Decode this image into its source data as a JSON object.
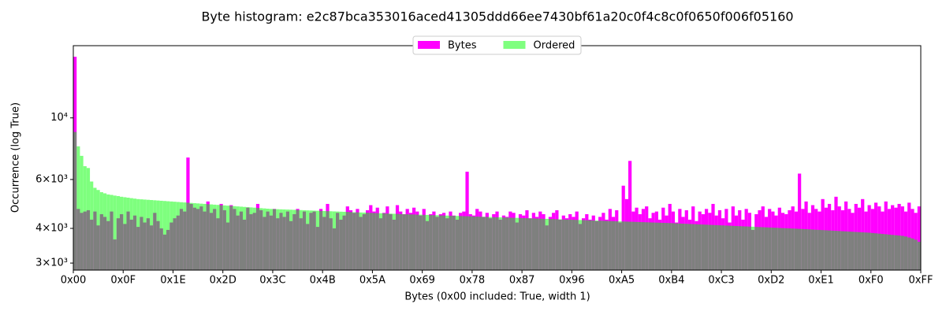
{
  "chart_data": {
    "type": "histogram",
    "title": "Byte histogram: e2c87bca353016aced41305ddd66ee7430bf61a20c0f4c8c0f0650f006f05160",
    "xlabel": "Bytes (0x00 included: True, width 1)",
    "ylabel": "Occurrence (log True)",
    "ylog": true,
    "legend": "upper center",
    "bins": [
      0,
      1,
      2,
      3,
      4,
      5,
      6,
      7,
      8,
      9,
      10,
      11,
      12,
      13,
      14,
      15,
      16,
      17,
      18,
      19,
      20,
      21,
      22,
      23,
      24,
      25,
      26,
      27,
      28,
      29,
      30,
      31,
      32,
      33,
      34,
      35,
      36,
      37,
      38,
      39,
      40,
      41,
      42,
      43,
      44,
      45,
      46,
      47,
      48,
      49,
      50,
      51,
      52,
      53,
      54,
      55,
      56,
      57,
      58,
      59,
      60,
      61,
      62,
      63,
      64,
      65,
      66,
      67,
      68,
      69,
      70,
      71,
      72,
      73,
      74,
      75,
      76,
      77,
      78,
      79,
      80,
      81,
      82,
      83,
      84,
      85,
      86,
      87,
      88,
      89,
      90,
      91,
      92,
      93,
      94,
      95,
      96,
      97,
      98,
      99,
      100,
      101,
      102,
      103,
      104,
      105,
      106,
      107,
      108,
      109,
      110,
      111,
      112,
      113,
      114,
      115,
      116,
      117,
      118,
      119,
      120,
      121,
      122,
      123,
      124,
      125,
      126,
      127,
      128,
      129,
      130,
      131,
      132,
      133,
      134,
      135,
      136,
      137,
      138,
      139,
      140,
      141,
      142,
      143,
      144,
      145,
      146,
      147,
      148,
      149,
      150,
      151,
      152,
      153,
      154,
      155,
      156,
      157,
      158,
      159,
      160,
      161,
      162,
      163,
      164,
      165,
      166,
      167,
      168,
      169,
      170,
      171,
      172,
      173,
      174,
      175,
      176,
      177,
      178,
      179,
      180,
      181,
      182,
      183,
      184,
      185,
      186,
      187,
      188,
      189,
      190,
      191,
      192,
      193,
      194,
      195,
      196,
      197,
      198,
      199,
      200,
      201,
      202,
      203,
      204,
      205,
      206,
      207,
      208,
      209,
      210,
      211,
      212,
      213,
      214,
      215,
      216,
      217,
      218,
      219,
      220,
      221,
      222,
      223,
      224,
      225,
      226,
      227,
      228,
      229,
      230,
      231,
      232,
      233,
      234,
      235,
      236,
      237,
      238,
      239,
      240,
      241,
      242,
      243,
      244,
      245,
      246,
      247,
      248,
      249,
      250,
      251,
      252,
      253,
      254,
      255,
      256
    ],
    "series": [
      {
        "name": "Bytes",
        "color": "#ff00ff",
        "opacity": 1,
        "values": [
          16600,
          4700,
          4550,
          4600,
          4650,
          4300,
          4600,
          4100,
          4500,
          4400,
          4250,
          4600,
          3650,
          4350,
          4500,
          4150,
          4600,
          4300,
          4450,
          4050,
          4400,
          4200,
          4350,
          4100,
          4550,
          4250,
          4000,
          3800,
          3950,
          4200,
          4350,
          4450,
          4700,
          4600,
          7200,
          4900,
          4750,
          4700,
          4800,
          4600,
          5000,
          4550,
          4700,
          4350,
          4900,
          4650,
          4200,
          4850,
          4700,
          4450,
          4600,
          4300,
          4750,
          4500,
          4550,
          4900,
          4650,
          4400,
          4600,
          4450,
          4700,
          4350,
          4550,
          4400,
          4600,
          4250,
          4500,
          4700,
          4350,
          4600,
          4150,
          4550,
          4600,
          4050,
          4700,
          4400,
          4900,
          4350,
          4000,
          4550,
          4300,
          4450,
          4800,
          4650,
          4550,
          4700,
          4400,
          4500,
          4650,
          4850,
          4600,
          4750,
          4350,
          4550,
          4800,
          4500,
          4300,
          4850,
          4600,
          4500,
          4700,
          4550,
          4750,
          4600,
          4450,
          4700,
          4250,
          4500,
          4600,
          4400,
          4500,
          4550,
          4350,
          4600,
          4450,
          4300,
          4550,
          4600,
          6400,
          4500,
          4450,
          4700,
          4600,
          4400,
          4550,
          4350,
          4500,
          4600,
          4300,
          4450,
          4400,
          4600,
          4550,
          4200,
          4500,
          4450,
          4650,
          4350,
          4550,
          4400,
          4600,
          4500,
          4100,
          4400,
          4550,
          4650,
          4300,
          4450,
          4350,
          4500,
          4400,
          4600,
          4150,
          4350,
          4500,
          4300,
          4450,
          4250,
          4400,
          4550,
          4300,
          4700,
          4400,
          4650,
          4200,
          5700,
          5100,
          7000,
          4600,
          4750,
          4500,
          4700,
          4800,
          4350,
          4550,
          4600,
          4300,
          4750,
          4450,
          4900,
          4600,
          4200,
          4700,
          4400,
          4650,
          4300,
          4800,
          4250,
          4600,
          4500,
          4700,
          4550,
          4900,
          4450,
          4650,
          4350,
          4700,
          4200,
          4800,
          4450,
          4650,
          4300,
          4700,
          4550,
          3950,
          4500,
          4650,
          4800,
          4400,
          4700,
          4600,
          4450,
          4750,
          4550,
          4500,
          4650,
          4800,
          4600,
          6300,
          4700,
          5000,
          4550,
          4850,
          4700,
          4600,
          5100,
          4750,
          4900,
          4650,
          5200,
          4800,
          4650,
          5000,
          4700,
          4550,
          4900,
          4750,
          5100,
          4600,
          4850,
          4700,
          4950,
          4800,
          4600,
          5000,
          4700,
          4850,
          4750,
          4900,
          4800,
          4600,
          4950,
          4700,
          4550,
          4800,
          5150
        ]
      },
      {
        "name": "Ordered",
        "color": "#00ff00",
        "opacity": 0.5,
        "values": [
          8900,
          7900,
          7300,
          6700,
          6600,
          5900,
          5600,
          5500,
          5400,
          5350,
          5300,
          5280,
          5250,
          5230,
          5200,
          5180,
          5160,
          5140,
          5120,
          5100,
          5090,
          5080,
          5070,
          5060,
          5050,
          5040,
          5030,
          5020,
          5010,
          5000,
          4990,
          4980,
          4970,
          4960,
          4950,
          4940,
          4930,
          4920,
          4910,
          4900,
          4890,
          4880,
          4870,
          4860,
          4850,
          4840,
          4830,
          4820,
          4810,
          4800,
          4790,
          4780,
          4770,
          4760,
          4750,
          4740,
          4730,
          4720,
          4710,
          4700,
          4695,
          4690,
          4685,
          4680,
          4675,
          4670,
          4665,
          4660,
          4655,
          4650,
          4645,
          4640,
          4635,
          4630,
          4625,
          4620,
          4615,
          4610,
          4605,
          4600,
          4595,
          4590,
          4585,
          4580,
          4575,
          4570,
          4565,
          4560,
          4555,
          4550,
          4545,
          4540,
          4535,
          4530,
          4525,
          4520,
          4515,
          4510,
          4505,
          4500,
          4496,
          4492,
          4488,
          4484,
          4480,
          4476,
          4472,
          4468,
          4464,
          4460,
          4456,
          4452,
          4448,
          4444,
          4440,
          4436,
          4432,
          4428,
          4424,
          4420,
          4416,
          4412,
          4408,
          4404,
          4400,
          4396,
          4392,
          4388,
          4384,
          4380,
          4376,
          4372,
          4368,
          4364,
          4360,
          4356,
          4352,
          4348,
          4344,
          4340,
          4336,
          4332,
          4328,
          4324,
          4320,
          4316,
          4312,
          4308,
          4304,
          4300,
          4296,
          4292,
          4288,
          4284,
          4280,
          4276,
          4272,
          4268,
          4264,
          4260,
          4256,
          4252,
          4248,
          4244,
          4240,
          4236,
          4232,
          4228,
          4224,
          4220,
          4216,
          4212,
          4208,
          4204,
          4200,
          4196,
          4192,
          4188,
          4184,
          4180,
          4175,
          4170,
          4165,
          4160,
          4155,
          4150,
          4145,
          4140,
          4135,
          4130,
          4125,
          4120,
          4115,
          4110,
          4105,
          4100,
          4095,
          4090,
          4085,
          4080,
          4075,
          4070,
          4065,
          4060,
          4055,
          4050,
          4045,
          4040,
          4035,
          4030,
          4025,
          4020,
          4015,
          4010,
          4005,
          4000,
          3995,
          3990,
          3985,
          3980,
          3974,
          3968,
          3962,
          3956,
          3950,
          3944,
          3938,
          3932,
          3926,
          3920,
          3914,
          3908,
          3902,
          3896,
          3890,
          3884,
          3878,
          3872,
          3866,
          3860,
          3850,
          3840,
          3830,
          3820,
          3810,
          3800,
          3790,
          3780,
          3770,
          3760,
          3740,
          3710,
          3680,
          3640,
          3580,
          3480
        ]
      }
    ],
    "xlim": [
      0,
      255
    ],
    "ylim": [
      2830,
      18200
    ],
    "xticks": [
      {
        "value": 0,
        "label": "0x00"
      },
      {
        "value": 15,
        "label": "0x0F"
      },
      {
        "value": 30,
        "label": "0x1E"
      },
      {
        "value": 45,
        "label": "0x2D"
      },
      {
        "value": 60,
        "label": "0x3C"
      },
      {
        "value": 75,
        "label": "0x4B"
      },
      {
        "value": 90,
        "label": "0x5A"
      },
      {
        "value": 105,
        "label": "0x69"
      },
      {
        "value": 120,
        "label": "0x78"
      },
      {
        "value": 135,
        "label": "0x87"
      },
      {
        "value": 150,
        "label": "0x96"
      },
      {
        "value": 165,
        "label": "0xA5"
      },
      {
        "value": 180,
        "label": "0xB4"
      },
      {
        "value": 195,
        "label": "0xC3"
      },
      {
        "value": 210,
        "label": "0xD2"
      },
      {
        "value": 225,
        "label": "0xE1"
      },
      {
        "value": 240,
        "label": "0xF0"
      },
      {
        "value": 255,
        "label": "0xFF"
      }
    ],
    "yticks": [
      {
        "value": 3000,
        "label": "3×10³"
      },
      {
        "value": 4000,
        "label": "4×10³"
      },
      {
        "value": 6000,
        "label": "6×10³"
      },
      {
        "value": 10000,
        "label": "10⁴"
      }
    ]
  }
}
